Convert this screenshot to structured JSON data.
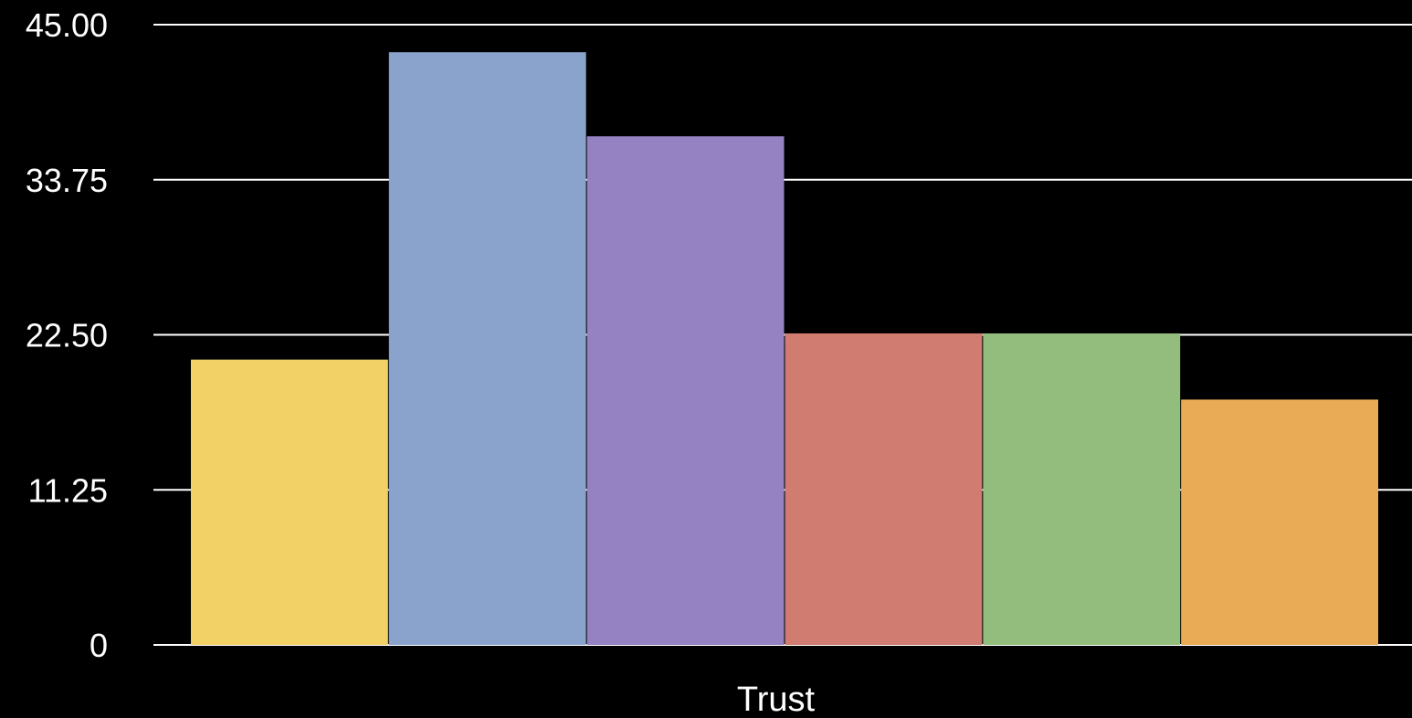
{
  "chart_data": {
    "type": "bar",
    "categories": [
      "Trust"
    ],
    "series": [
      {
        "values": [
          20.7
        ],
        "color": "#f2d266"
      },
      {
        "values": [
          43.0
        ],
        "color": "#8aa3cc"
      },
      {
        "values": [
          36.9
        ],
        "color": "#9482c2"
      },
      {
        "values": [
          22.6
        ],
        "color": "#d07c70"
      },
      {
        "values": [
          22.6
        ],
        "color": "#93bd7c"
      },
      {
        "values": [
          17.8
        ],
        "color": "#e9ab55"
      }
    ],
    "title": "",
    "xlabel": "",
    "ylabel": "",
    "ylim": [
      0,
      45
    ],
    "yticks": [
      0,
      11.25,
      22.5,
      33.75,
      45
    ],
    "ytick_labels": [
      "0",
      "11.25",
      "22.50",
      "33.75",
      "45.00"
    ],
    "grid": true,
    "background": "#000000"
  }
}
